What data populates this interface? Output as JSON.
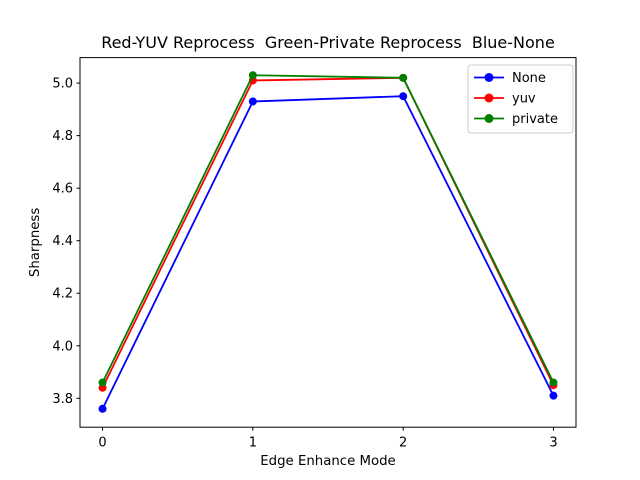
{
  "figure": {
    "background": "#ffffff"
  },
  "chart_data": {
    "type": "line",
    "title": "Red-YUV Reprocess  Green-Private Reprocess  Blue-None",
    "xlabel": "Edge Enhance Mode",
    "ylabel": "Sharpness",
    "x": [
      0,
      1,
      2,
      3
    ],
    "series": [
      {
        "name": "None",
        "color": "#0000ff",
        "marker": "o",
        "values": [
          3.76,
          4.93,
          4.95,
          3.81
        ]
      },
      {
        "name": "yuv",
        "color": "#ff0000",
        "marker": "o",
        "values": [
          3.84,
          5.01,
          5.02,
          3.85
        ]
      },
      {
        "name": "private",
        "color": "#008000",
        "marker": "o",
        "values": [
          3.86,
          5.03,
          5.02,
          3.86
        ]
      }
    ],
    "xticks": [
      0,
      1,
      2,
      3
    ],
    "xtick_labels": [
      "0",
      "1",
      "2",
      "3"
    ],
    "yticks": [
      3.8,
      4.0,
      4.2,
      4.4,
      4.6,
      4.8,
      5.0
    ],
    "ytick_labels": [
      "3.8",
      "4.0",
      "4.2",
      "4.4",
      "4.6",
      "4.8",
      "5.0"
    ],
    "xlim": [
      -0.15,
      3.15
    ],
    "ylim": [
      3.69,
      5.097
    ],
    "grid": false,
    "legend": {
      "position": "upper right",
      "entries": [
        "None",
        "yuv",
        "private"
      ],
      "frame_color": "#cccccc",
      "background": "#ffffff"
    }
  }
}
